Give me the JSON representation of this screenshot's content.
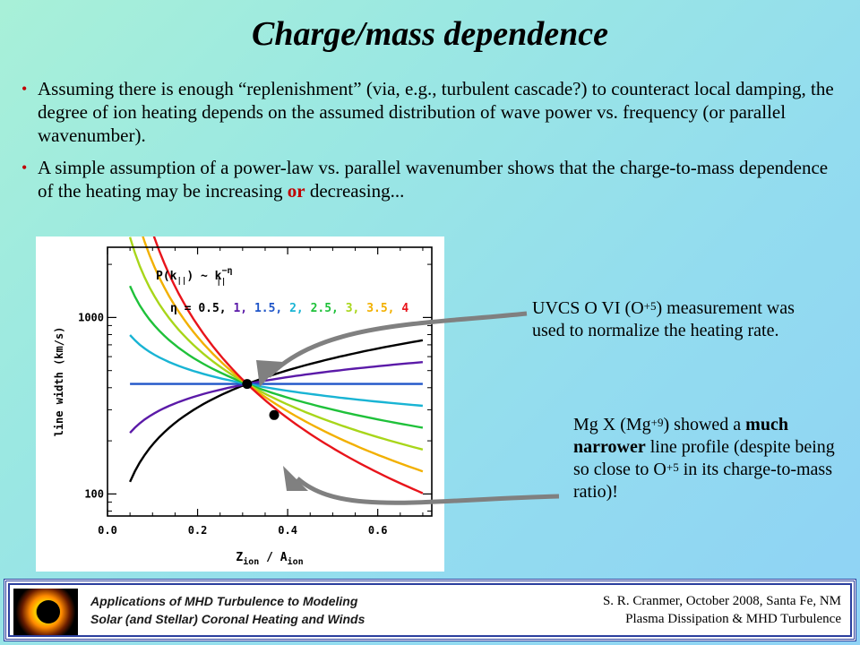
{
  "slide": {
    "title": "Charge/mass dependence",
    "bullets": [
      {
        "text": "Assuming there is enough “replenishment” (via, e.g., turbulent cascade?) to counteract local damping, the degree of ion heating depends on the assumed distribution of wave power vs. frequency (or parallel wavenumber)."
      },
      {
        "text_before": "A simple assumption of a power-law vs. parallel wavenumber shows that the charge-to-mass dependence of the heating may be increasing ",
        "emphasis": "or",
        "text_after": " decreasing..."
      }
    ]
  },
  "annotations": {
    "note1": {
      "prefix": "UVCS O VI (O",
      "sup": "+5",
      "suffix": ") measurement was used to normalize the heating rate."
    },
    "note2": {
      "prefix": "Mg X (Mg",
      "sup": "+9",
      "middle1": ") showed a ",
      "bold": "much narrower",
      "middle2": " line profile (despite being so close to O",
      "sup2": "+5",
      "suffix": " in its charge-to-mass ratio)!"
    }
  },
  "footer": {
    "left_line1": "Applications of MHD Turbulence to Modeling",
    "left_line2": "Solar (and Stellar) Coronal Heating and Winds",
    "right_line1": "S. R. Cranmer,  October 2008, Santa Fe, NM",
    "right_line2": "Plasma Dissipation & MHD Turbulence"
  },
  "chart_data": {
    "type": "line",
    "title": "",
    "xlabel": "Z_ion / A_ion",
    "ylabel": "line width  (km/s)",
    "xlim": [
      0.0,
      0.72
    ],
    "ylim": [
      75,
      2500
    ],
    "yscale": "log",
    "x_ticks": [
      {
        "value": 0.0,
        "label": "0.0"
      },
      {
        "value": 0.2,
        "label": "0.2"
      },
      {
        "value": 0.4,
        "label": "0.4"
      },
      {
        "value": 0.6,
        "label": "0.6"
      }
    ],
    "y_ticks": [
      {
        "value": 100,
        "label": "100"
      },
      {
        "value": 1000,
        "label": "1000"
      }
    ],
    "legend": {
      "formula_left": "P(k",
      "formula_sub": "||",
      "formula_mid": ") ~ k",
      "formula_exp": "−η",
      "formula_sub2": "||",
      "eta_label": "η =",
      "placement": "top-right"
    },
    "pivot": {
      "x": 0.31,
      "y": 420
    },
    "x_range": [
      0.05,
      0.7
    ],
    "series": [
      {
        "name": "0.5",
        "eta": 0.5,
        "color": "#000000"
      },
      {
        "name": "1",
        "eta": 1.0,
        "color": "#5b1aa8"
      },
      {
        "name": "1.5",
        "eta": 1.5,
        "color": "#1f55c8"
      },
      {
        "name": "2",
        "eta": 2.0,
        "color": "#19b4d4"
      },
      {
        "name": "2.5",
        "eta": 2.5,
        "color": "#1fc13a"
      },
      {
        "name": "3",
        "eta": 3.0,
        "color": "#a8d61a"
      },
      {
        "name": "3.5",
        "eta": 3.5,
        "color": "#f2b000"
      },
      {
        "name": "4",
        "eta": 4.0,
        "color": "#e8141b"
      }
    ],
    "measurements": [
      {
        "label": "O VI",
        "x": 0.31,
        "y": 420
      },
      {
        "label": "Mg X",
        "x": 0.37,
        "y": 280
      }
    ],
    "arrow_color": "#808080"
  }
}
